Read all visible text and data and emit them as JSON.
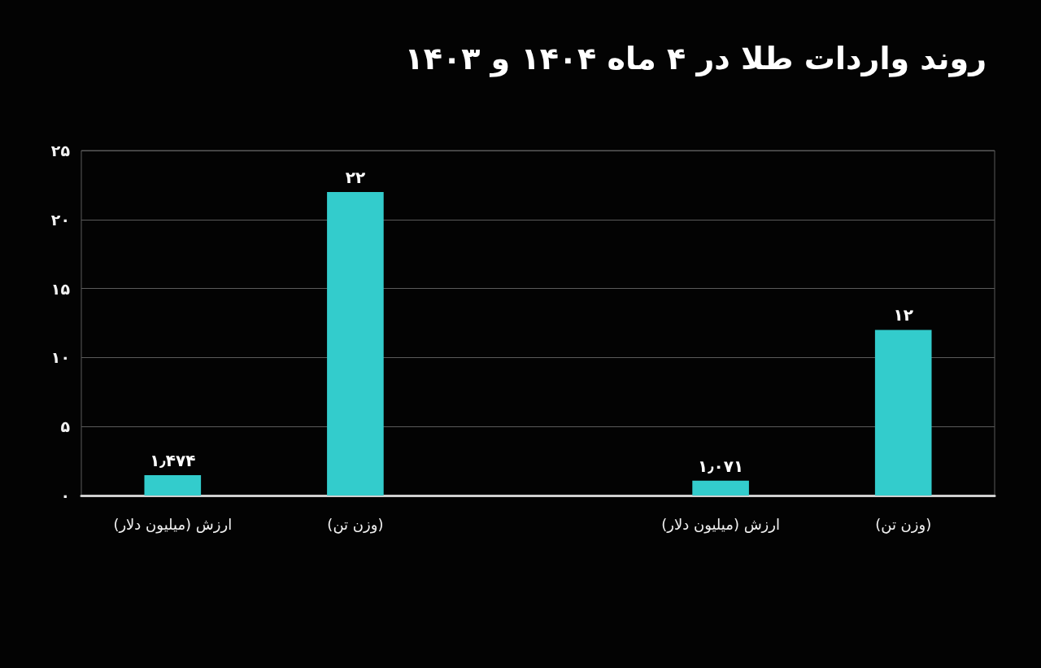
{
  "chart_data": {
    "type": "bar",
    "title": "روند واردات طلا در ۴ ماه ۱۴۰۴ و ۱۴۰۳",
    "categories": [
      "ارزش (میلیون دلار)",
      "(وزن تن)",
      null,
      "ارزش (میلیون دلار)",
      "(وزن تن)"
    ],
    "values": [
      1.474,
      22,
      null,
      1.071,
      12
    ],
    "color": "#33cccc",
    "value_labels": [
      "۱٫۴۷۴",
      "۲۲",
      null,
      "۱٫۰۷۱",
      "۱۲"
    ],
    "ylim": [
      0,
      25
    ],
    "yticks": [
      {
        "value": 0,
        "label": "۰"
      },
      {
        "value": 5,
        "label": "۵"
      },
      {
        "value": 10,
        "label": "۱۰"
      },
      {
        "value": 15,
        "label": "۱۵"
      },
      {
        "value": 20,
        "label": "۲۰"
      },
      {
        "value": 25,
        "label": "۲۵"
      }
    ],
    "grid": "y"
  }
}
